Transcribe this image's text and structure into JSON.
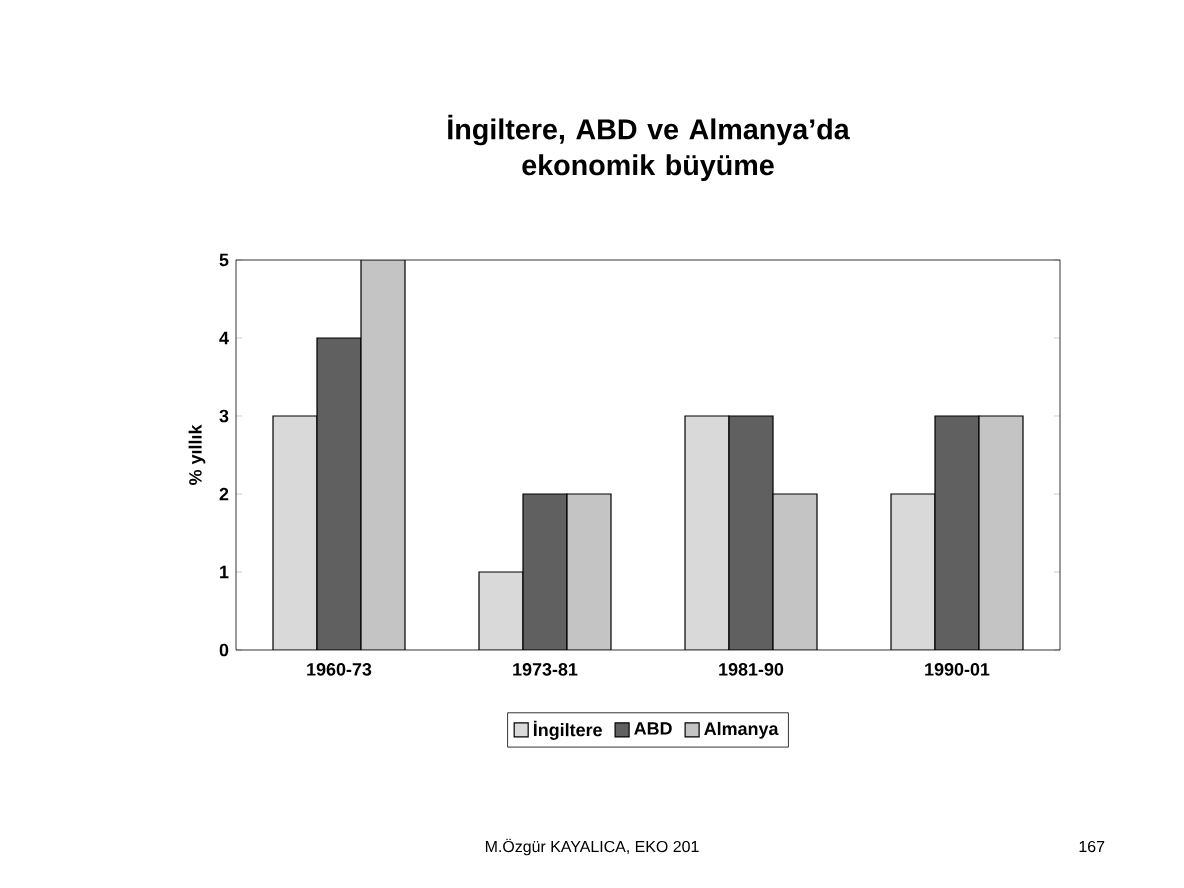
{
  "chart_data": {
    "type": "bar",
    "title": "İngiltere, ABD ve Almanya’da ekonomik büyüme",
    "ylabel": "% yıllık",
    "categories": [
      "1960-73",
      "1973-81",
      "1981-90",
      "1990-01"
    ],
    "series": [
      {
        "name": "İngiltere",
        "color": "#d9d9d9",
        "values": [
          3,
          1,
          3,
          2
        ]
      },
      {
        "name": "ABD",
        "color": "#606060",
        "values": [
          4,
          2,
          3,
          3
        ]
      },
      {
        "name": "Almanya",
        "color": "#c4c4c4",
        "values": [
          5,
          2,
          2,
          3
        ]
      }
    ],
    "ylim": [
      0,
      5
    ],
    "yticks": [
      0,
      1,
      2,
      3,
      4,
      5
    ],
    "legend": "bottom",
    "grid": false,
    "annotations": [
      "M.Özgür KAYALICA, EKO 201",
      "167"
    ]
  }
}
